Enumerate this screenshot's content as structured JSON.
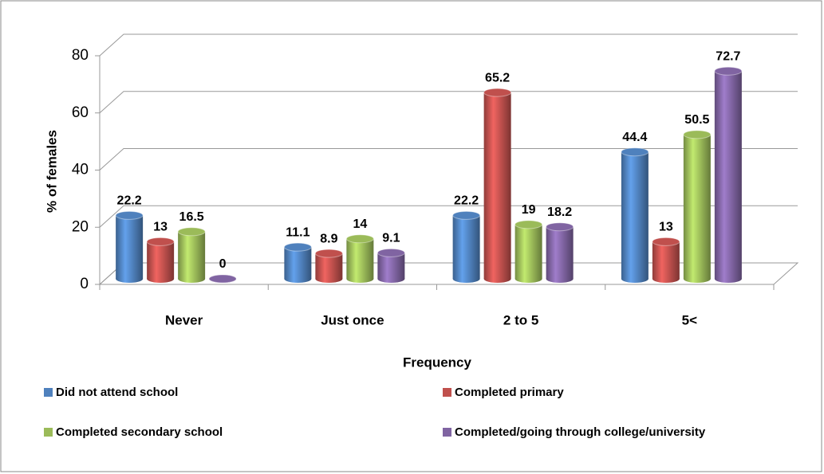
{
  "chart_data": {
    "type": "bar",
    "x_label": "Frequency",
    "y_label": "% of females",
    "categories": [
      "Never",
      "Just once",
      "2 to 5",
      "5<"
    ],
    "series": [
      {
        "name": "Did not attend school",
        "color": "#4f81bd",
        "values": [
          22.2,
          11.1,
          22.2,
          44.4
        ]
      },
      {
        "name": "Completed primary",
        "color": "#c0504d",
        "values": [
          13,
          8.9,
          65.2,
          13
        ]
      },
      {
        "name": "Completed secondary school",
        "color": "#9bbb59",
        "values": [
          16.5,
          14,
          19,
          50.5
        ]
      },
      {
        "name": "Completed/going through college/university",
        "color": "#8064a2",
        "values": [
          0,
          9.1,
          18.2,
          72.7
        ]
      }
    ],
    "ylim": [
      0,
      80
    ],
    "yticks": [
      0,
      20,
      40,
      60,
      80
    ],
    "grid": true
  }
}
